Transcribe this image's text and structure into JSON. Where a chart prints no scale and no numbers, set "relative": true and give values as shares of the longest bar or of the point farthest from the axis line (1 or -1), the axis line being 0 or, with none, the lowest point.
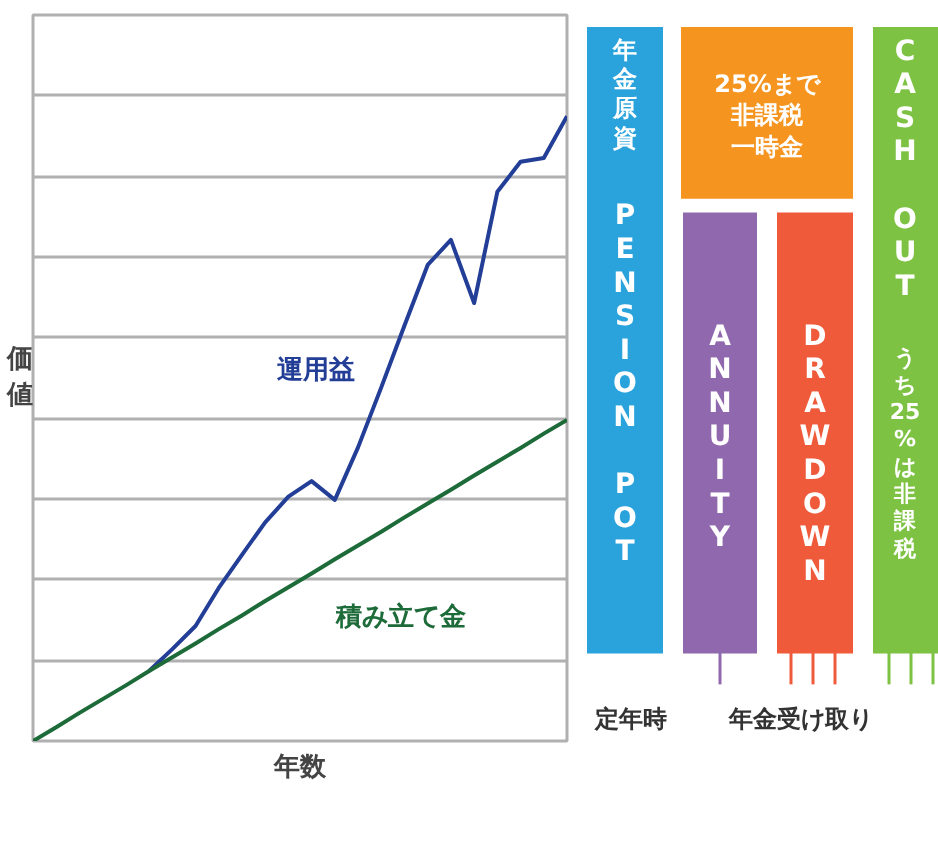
{
  "chart_data": [
    {
      "type": "line",
      "relative": true,
      "xlabel": "年数",
      "ylabel": "価値",
      "grid": true,
      "legend": false,
      "categories": [
        null,
        null,
        null,
        null,
        null,
        null,
        null,
        null,
        null,
        null,
        null,
        null,
        null,
        null,
        null,
        null,
        null,
        null,
        null,
        null,
        null,
        null,
        null,
        null
      ],
      "series": [
        {
          "name": "運用益",
          "color": "#233e97",
          "values": [
            null,
            null,
            null,
            null,
            null,
            0.112,
            0.147,
            0.184,
            0.245,
            0.298,
            0.35,
            0.391,
            0.416,
            0.386,
            0.47,
            0.566,
            0.665,
            0.762,
            0.802,
            0.701,
            0.879,
            0.927,
            0.933,
            1.0
          ]
        },
        {
          "name": "積み立て金",
          "color": "#1e6b3a",
          "values": [
            0,
            0.022,
            0.045,
            0.067,
            0.089,
            0.112,
            0.134,
            0.156,
            0.179,
            0.201,
            0.224,
            0.246,
            0.268,
            0.291,
            0.313,
            0.335,
            0.358,
            0.38,
            0.402,
            0.425,
            0.447,
            0.469,
            0.492,
            0.514
          ]
        }
      ]
    },
    {
      "type": "other",
      "colors": [
        "#2aa3dc",
        "#f5951f",
        "#9068ad",
        "#ef5a3b",
        "#7dc242"
      ],
      "annotations": [
        "年金原資",
        "PENSION POT",
        "25%まで",
        "非課税",
        "一時金",
        "ANNUITY",
        "DRAWDOWN",
        "CASH OUT",
        "うち25%は非課税",
        "定年時",
        "年金受け取り"
      ]
    }
  ]
}
